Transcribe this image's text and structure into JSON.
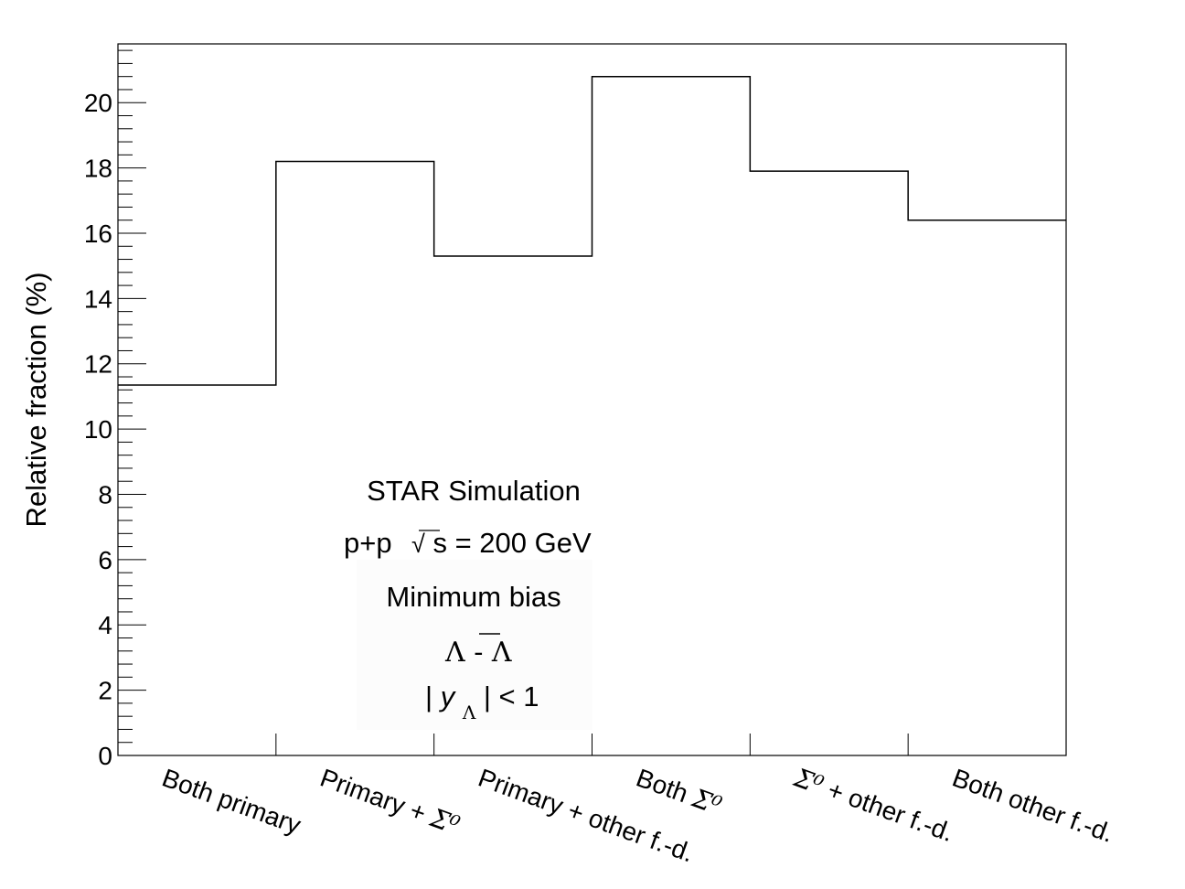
{
  "chart_data": {
    "type": "bar",
    "style": "step-histogram",
    "categories": [
      "Both primary",
      "Primary + Σ⁰",
      "Primary + other f.-d.",
      "Both Σ⁰",
      "Σ⁰ + other f.-d.",
      "Both other f.-d."
    ],
    "category_parts": [
      {
        "text": "Both primary",
        "sym": ""
      },
      {
        "text": "Primary + ",
        "sym": "Σ⁰"
      },
      {
        "text": "Primary + other f.-d.",
        "sym": ""
      },
      {
        "text": "Both ",
        "sym": "Σ⁰"
      },
      {
        "text": " + other f.-d.",
        "sym": "Σ⁰",
        "sym_first": true
      },
      {
        "text": "Both other f.-d.",
        "sym": ""
      }
    ],
    "values": [
      11.35,
      18.2,
      15.3,
      20.8,
      17.9,
      16.4
    ],
    "ylabel": "Relative fraction (%)",
    "xlabel": "",
    "ylim": [
      0,
      21.8
    ],
    "yticks": [
      0,
      2,
      4,
      6,
      8,
      10,
      12,
      14,
      16,
      18,
      20
    ],
    "grid": false,
    "legend": "none",
    "annotations": {
      "line1": "STAR Simulation",
      "line2_left": "p+p",
      "line2_sqrt": "√",
      "line2_s": "s",
      "line2_right": " = 200 GeV",
      "line3": "Minimum bias",
      "line4_a": "Λ",
      "line4_dash": "-",
      "line4_b": "Λ",
      "line5_bar_left": "|",
      "line5_y": "y",
      "line5_sub": "Λ",
      "line5_right": "| < 1"
    }
  }
}
